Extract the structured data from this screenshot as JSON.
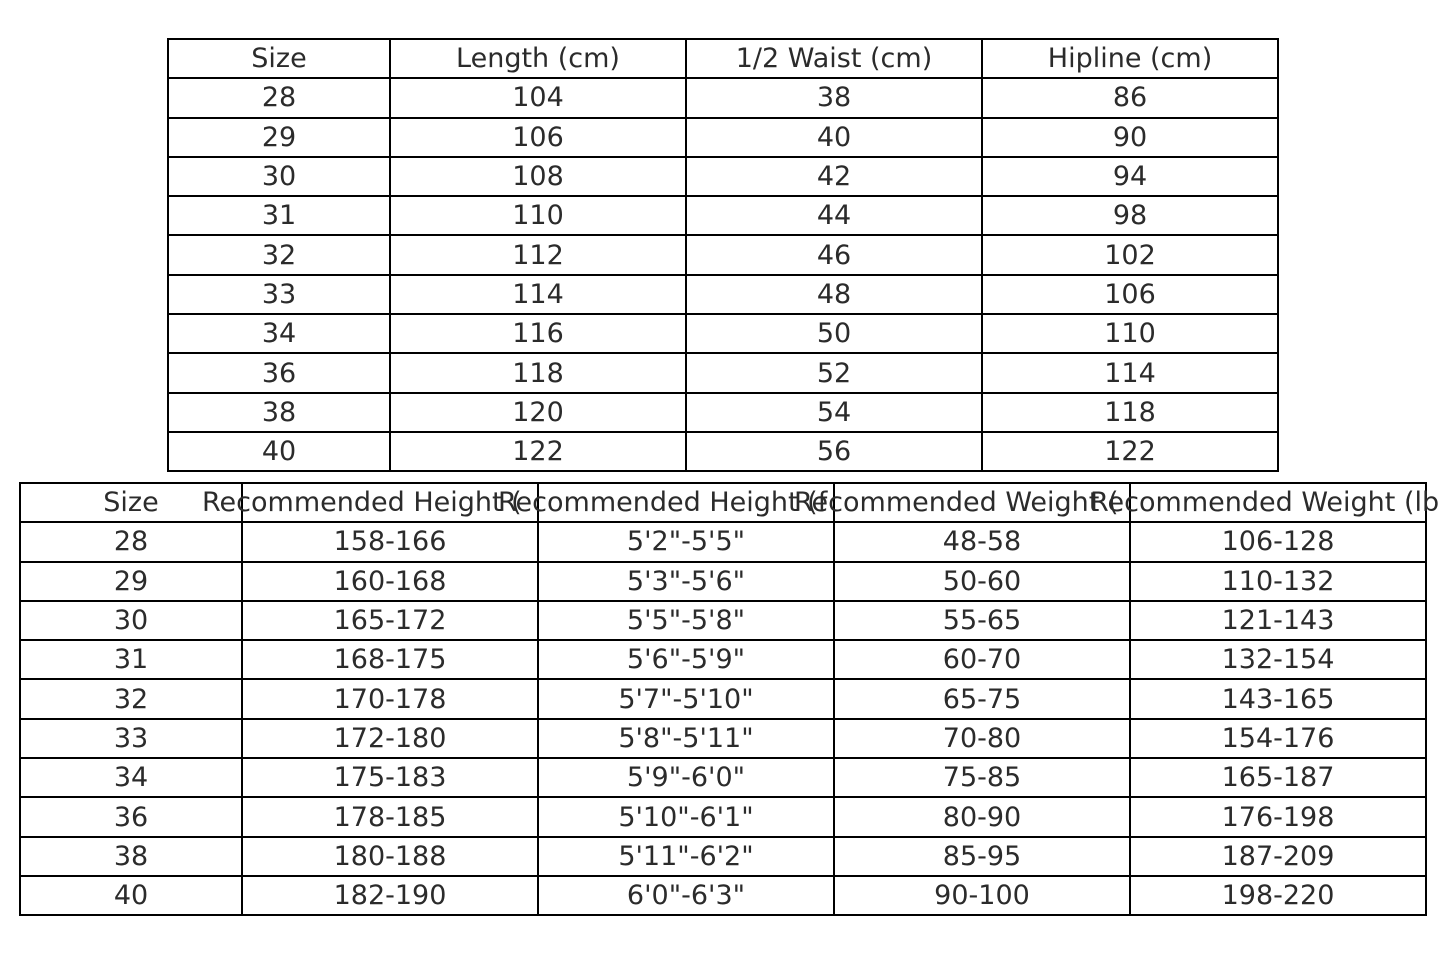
{
  "table1": {
    "headers": [
      "Size",
      "Length (cm)",
      "1/2 Waist (cm)",
      "Hipline (cm)"
    ],
    "rows": [
      [
        "28",
        "104",
        "38",
        "86"
      ],
      [
        "29",
        "106",
        "40",
        "90"
      ],
      [
        "30",
        "108",
        "42",
        "94"
      ],
      [
        "31",
        "110",
        "44",
        "98"
      ],
      [
        "32",
        "112",
        "46",
        "102"
      ],
      [
        "33",
        "114",
        "48",
        "106"
      ],
      [
        "34",
        "116",
        "50",
        "110"
      ],
      [
        "36",
        "118",
        "52",
        "114"
      ],
      [
        "38",
        "120",
        "54",
        "118"
      ],
      [
        "40",
        "122",
        "56",
        "122"
      ]
    ]
  },
  "table2": {
    "headers": [
      "Size",
      "Recommended Height (",
      "Recommended Height (f",
      "Recommended Weight (",
      "Recommended Weight (lb"
    ],
    "rows": [
      [
        "28",
        "158-166",
        "5'2\"-5'5\"",
        "48-58",
        "106-128"
      ],
      [
        "29",
        "160-168",
        "5'3\"-5'6\"",
        "50-60",
        "110-132"
      ],
      [
        "30",
        "165-172",
        "5'5\"-5'8\"",
        "55-65",
        "121-143"
      ],
      [
        "31",
        "168-175",
        "5'6\"-5'9\"",
        "60-70",
        "132-154"
      ],
      [
        "32",
        "170-178",
        "5'7\"-5'10\"",
        "65-75",
        "143-165"
      ],
      [
        "33",
        "172-180",
        "5'8\"-5'11\"",
        "70-80",
        "154-176"
      ],
      [
        "34",
        "175-183",
        "5'9\"-6'0\"",
        "75-85",
        "165-187"
      ],
      [
        "36",
        "178-185",
        "5'10\"-6'1\"",
        "80-90",
        "176-198"
      ],
      [
        "38",
        "180-188",
        "5'11\"-6'2\"",
        "85-95",
        "187-209"
      ],
      [
        "40",
        "182-190",
        "6'0\"-6'3\"",
        "90-100",
        "198-220"
      ]
    ]
  }
}
